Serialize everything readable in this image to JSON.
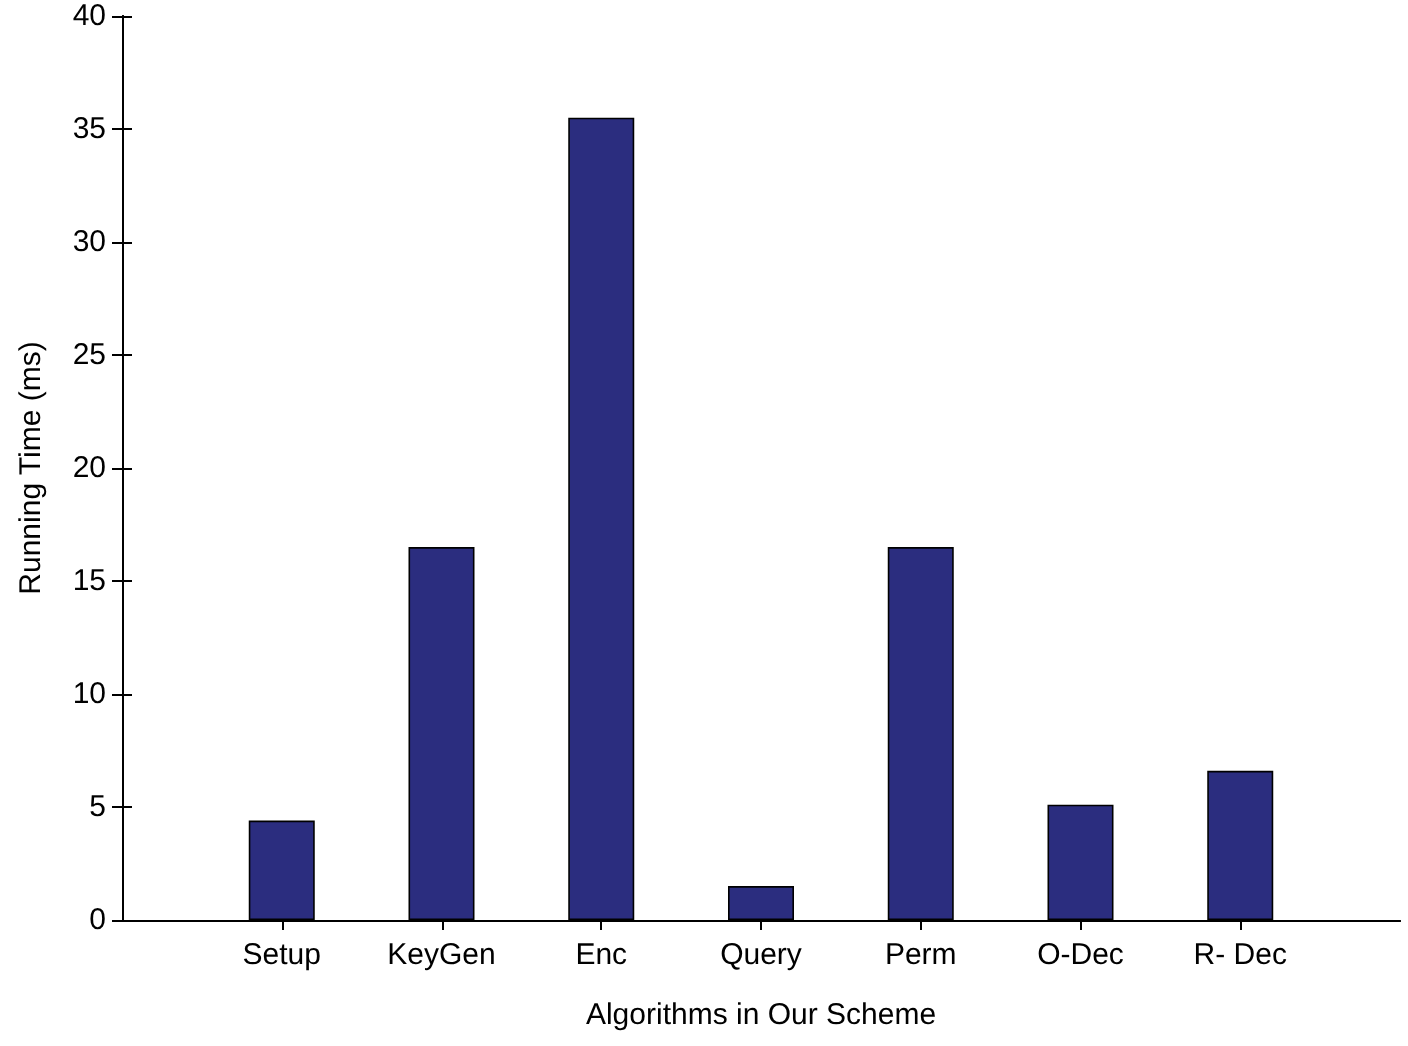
{
  "chart_data": {
    "type": "bar",
    "xlabel": "Algorithms in Our Scheme",
    "ylabel": "Running Time (ms)",
    "categories": [
      "Setup",
      "KeyGen",
      "Enc",
      "Query",
      "Perm",
      "O-Dec",
      "R- Dec"
    ],
    "values": [
      4.4,
      16.5,
      35.5,
      1.5,
      16.5,
      5.1,
      6.6
    ],
    "color": "#2b2d7f",
    "ylim": [
      0,
      40
    ],
    "yticks": [
      0,
      5,
      10,
      15,
      20,
      25,
      30,
      35,
      40
    ],
    "grid": false
  }
}
